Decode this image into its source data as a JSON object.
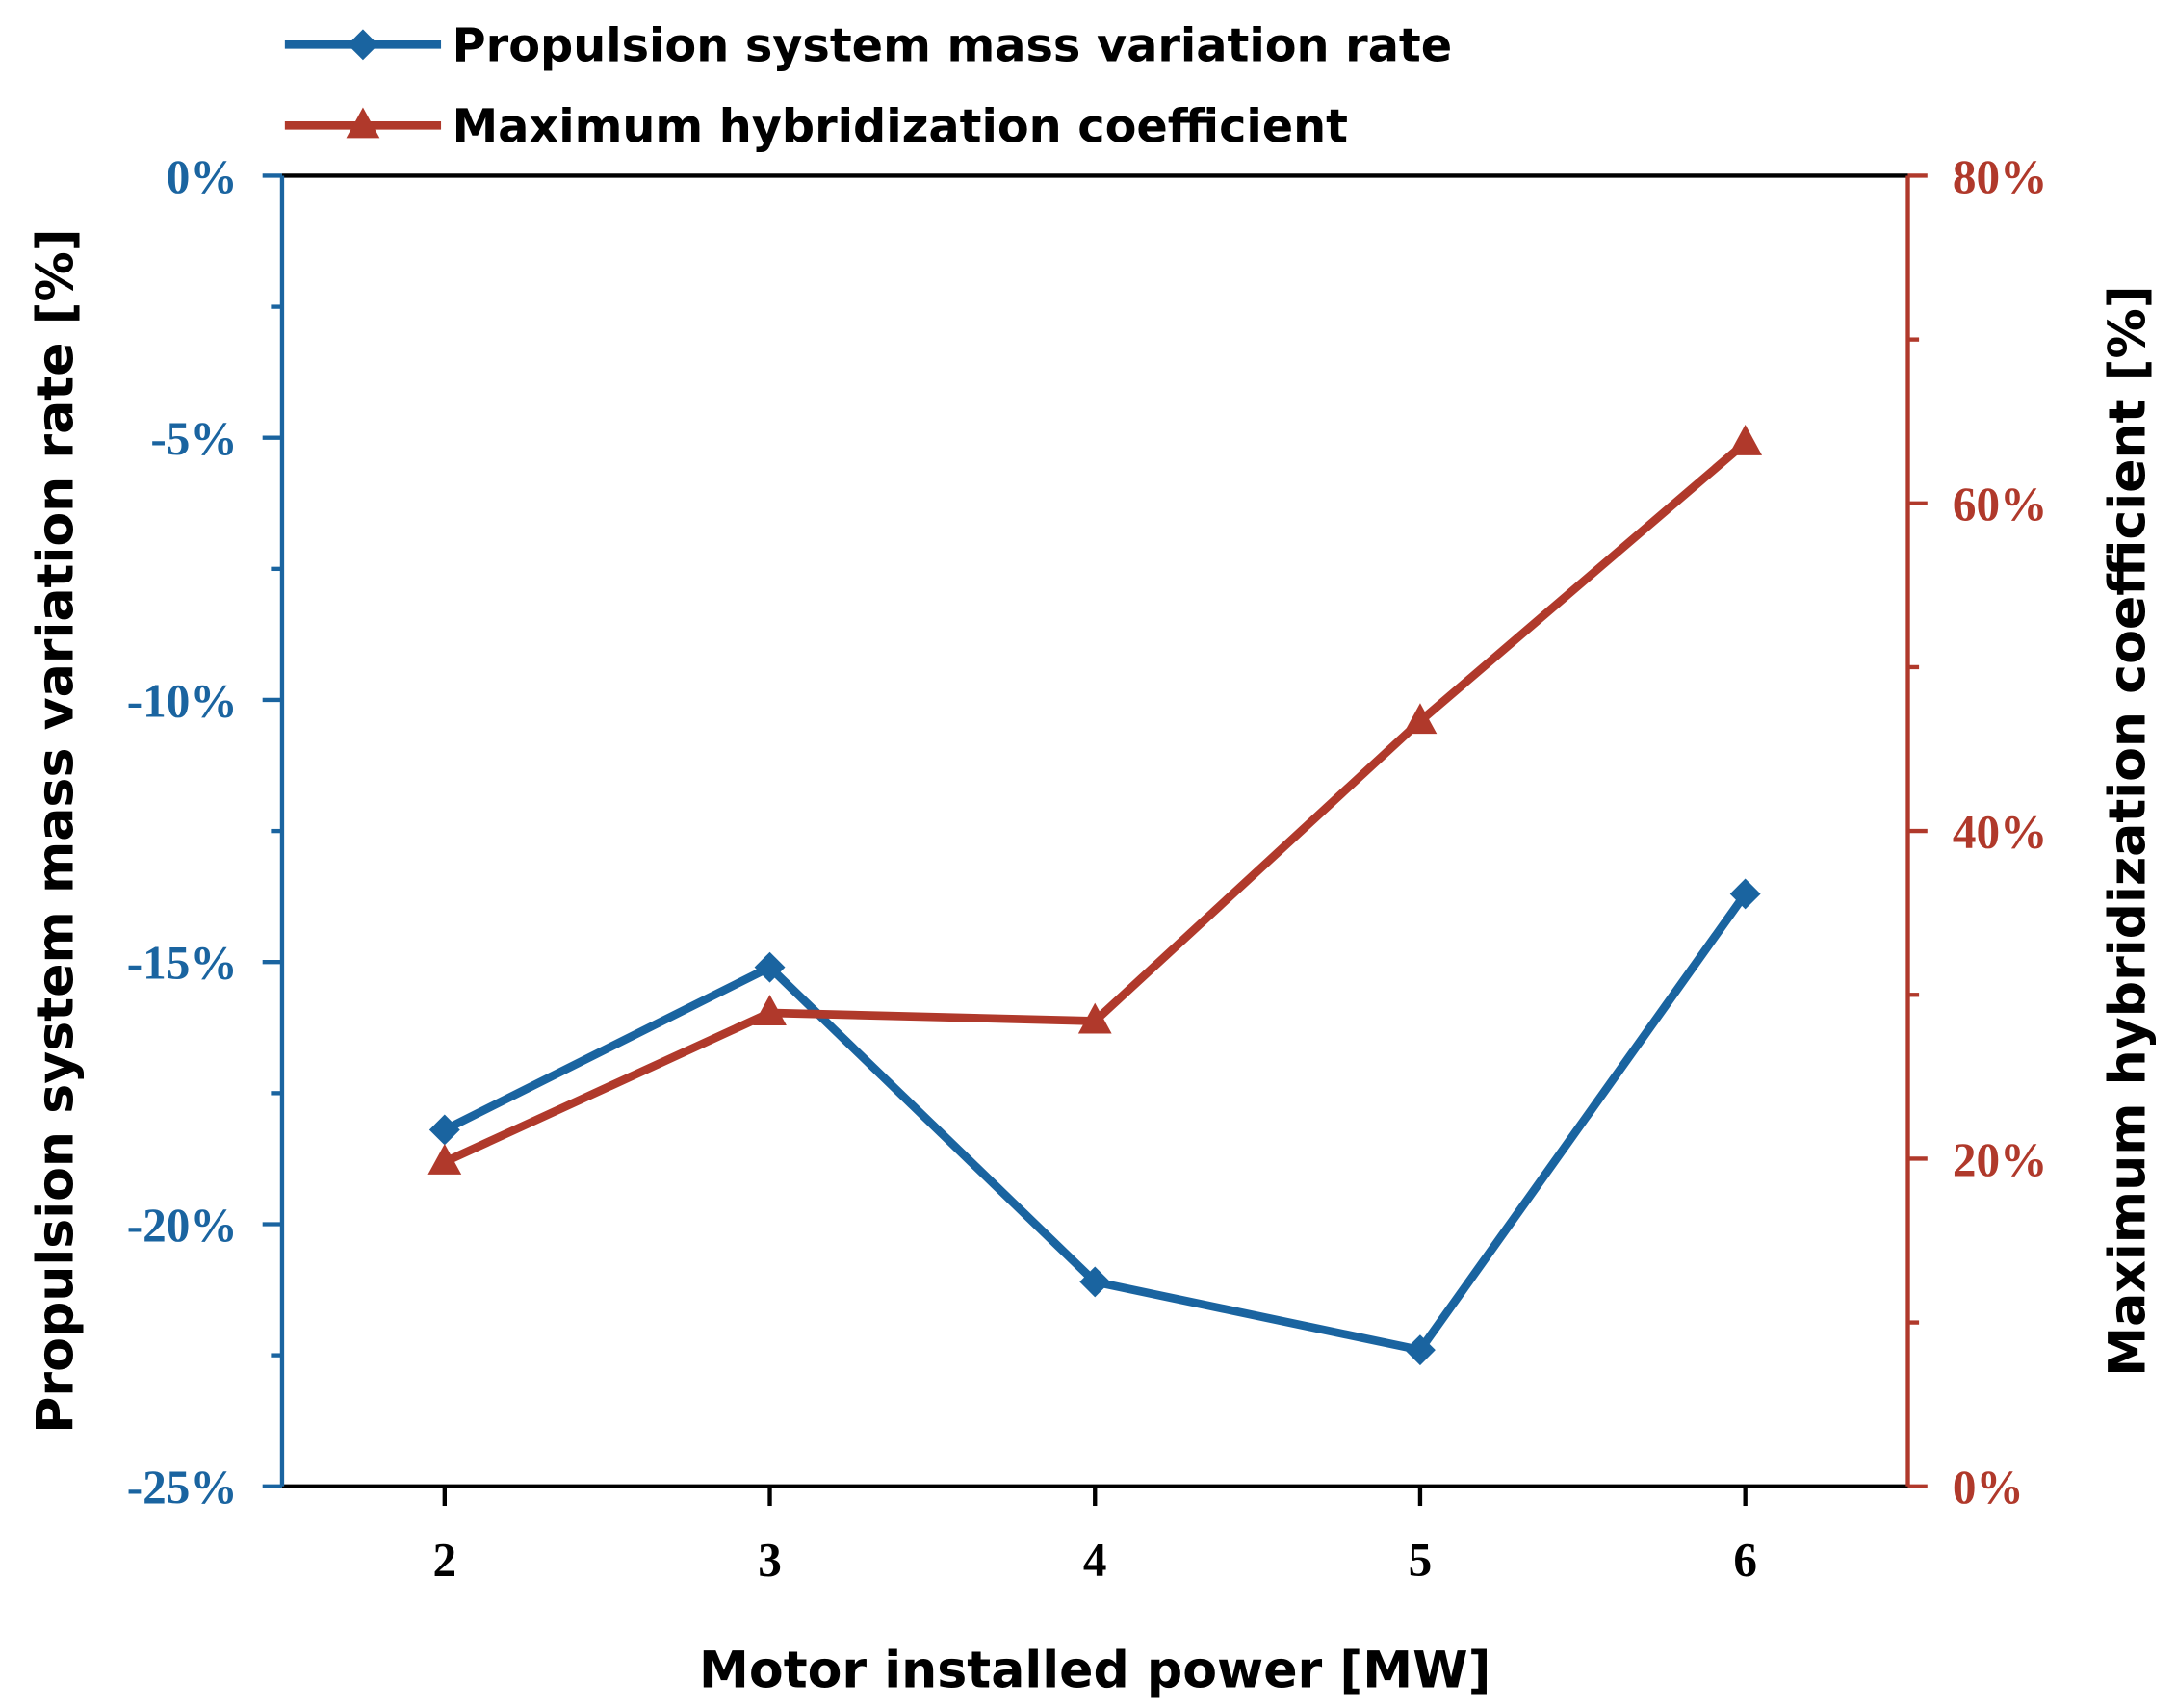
{
  "chart_data": {
    "type": "line",
    "title": "",
    "xlabel": "Motor installed power [MW]",
    "ylabel_left": "Propulsion system mass variation rate [%]",
    "ylabel_right": "Maximum hybridization coefficient [%]",
    "xlim": [
      1.5,
      6.5
    ],
    "ylim_left": [
      -25,
      0
    ],
    "ylim_right": [
      0,
      80
    ],
    "x_ticks": [
      2,
      3,
      4,
      5,
      6
    ],
    "y_left_ticks": [
      0,
      -5,
      -10,
      -15,
      -20,
      -25
    ],
    "y_left_tick_labels": [
      "0%",
      "-5%",
      "-10%",
      "-15%",
      "-20%",
      "-25%"
    ],
    "y_right_ticks": [
      0,
      20,
      40,
      60,
      80
    ],
    "y_right_tick_labels": [
      "0%",
      "20%",
      "40%",
      "60%",
      "80%"
    ],
    "grid": false,
    "legend_placement": "top-left, above plot",
    "x": [
      2,
      3,
      4,
      5,
      6
    ],
    "series": [
      {
        "name": "Propulsion system mass variation rate",
        "axis": "left",
        "marker": "diamond",
        "color": "#1a64a0",
        "values": [
          -18.2,
          -15.1,
          -21.1,
          -22.4,
          -13.7
        ]
      },
      {
        "name": "Maximum hybridization coefficient",
        "axis": "right",
        "marker": "triangle",
        "color": "#b0392b",
        "values": [
          19.8,
          28.9,
          28.4,
          46.7,
          63.7
        ]
      }
    ]
  }
}
